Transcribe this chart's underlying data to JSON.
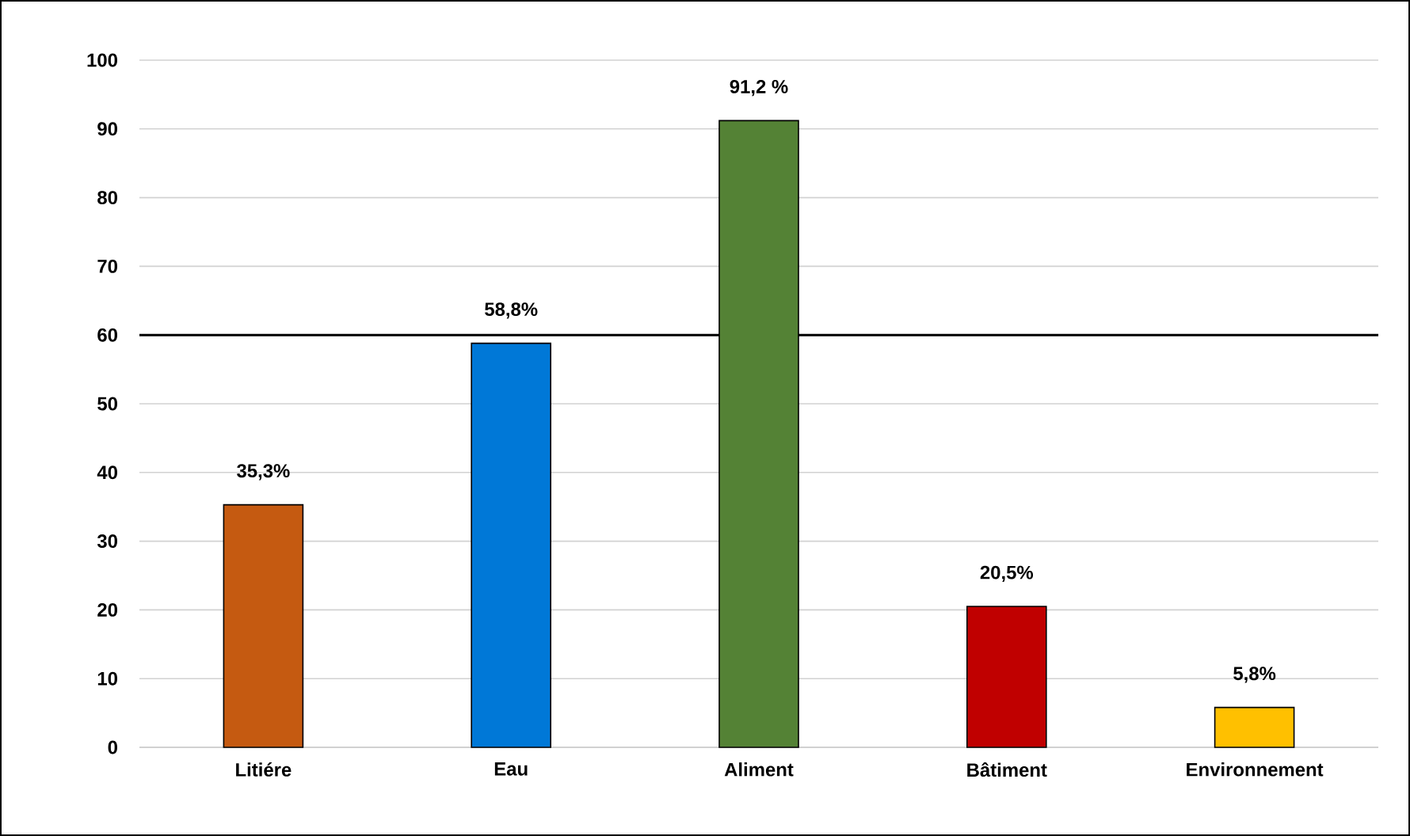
{
  "chart_data": {
    "type": "bar",
    "categories": [
      "Litiére",
      "Eau",
      "Aliment",
      "Bâtiment",
      "Environnement"
    ],
    "values": [
      35.3,
      58.8,
      91.2,
      20.5,
      5.8
    ],
    "colors": [
      "#c55a11",
      "#0078d7",
      "#548235",
      "#c00000",
      "#ffc000"
    ],
    "value_labels": [
      "35,3%",
      "58,8%",
      "91,2 %",
      "20,5%",
      "5,8%"
    ],
    "ylim": [
      0,
      100
    ],
    "yticks": [
      0,
      10,
      20,
      30,
      40,
      50,
      60,
      70,
      80,
      90,
      100
    ],
    "grid": "y",
    "ref_lines": [
      {
        "axis": "y",
        "value": 60,
        "color": "#000000"
      }
    ]
  }
}
